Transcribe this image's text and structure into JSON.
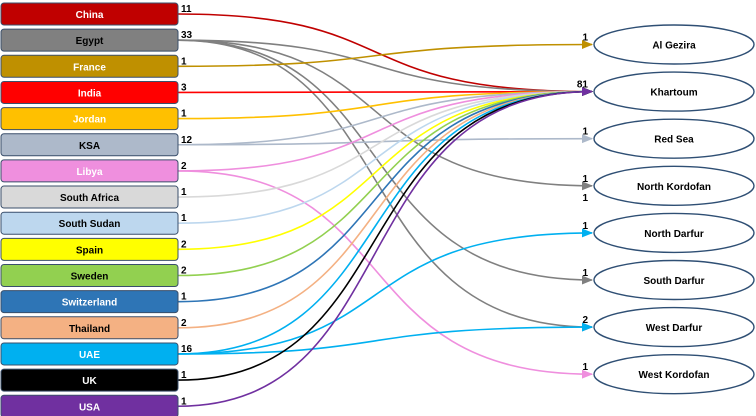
{
  "sources": [
    {
      "label": "China",
      "count": "11",
      "color": "#c00000",
      "text_color": "#ffffff"
    },
    {
      "label": "Egypt",
      "count": "33",
      "color": "#808080",
      "text_color": "#000000"
    },
    {
      "label": "France",
      "count": "1",
      "color": "#bf9000",
      "text_color": "#ffffff"
    },
    {
      "label": "India",
      "count": "3",
      "color": "#ff0000",
      "text_color": "#ffffff"
    },
    {
      "label": "Jordan",
      "count": "1",
      "color": "#ffc000",
      "text_color": "#ffffff"
    },
    {
      "label": "KSA",
      "count": "12",
      "color": "#adb9ca",
      "text_color": "#000000"
    },
    {
      "label": "Libya",
      "count": "2",
      "color": "#ef8fde",
      "text_color": "#ffffff"
    },
    {
      "label": "South Africa",
      "count": "1",
      "color": "#d9d9d9",
      "text_color": "#000000"
    },
    {
      "label": "South Sudan",
      "count": "1",
      "color": "#bdd7ee",
      "text_color": "#000000"
    },
    {
      "label": "Spain",
      "count": "2",
      "color": "#ffff00",
      "text_color": "#000000"
    },
    {
      "label": "Sweden",
      "count": "2",
      "color": "#92d050",
      "text_color": "#000000"
    },
    {
      "label": "Switzerland",
      "count": "1",
      "color": "#2e75b6",
      "text_color": "#ffffff"
    },
    {
      "label": "Thailand",
      "count": "2",
      "color": "#f4b183",
      "text_color": "#000000"
    },
    {
      "label": "UAE",
      "count": "16",
      "color": "#00b0f0",
      "text_color": "#ffffff"
    },
    {
      "label": "UK",
      "count": "1",
      "color": "#000000",
      "text_color": "#ffffff"
    },
    {
      "label": "USA",
      "count": "1",
      "color": "#7030a0",
      "text_color": "#ffffff"
    }
  ],
  "destinations": [
    {
      "label": "Al Gezira",
      "count": "1"
    },
    {
      "label": "Khartoum",
      "count": "81"
    },
    {
      "label": "Red Sea",
      "count": "1"
    },
    {
      "label": "North Kordofan",
      "count": "1",
      "count2": "1"
    },
    {
      "label": "North Darfur",
      "count": "1"
    },
    {
      "label": "South Darfur",
      "count": "1"
    },
    {
      "label": "West Darfur",
      "count": "2"
    },
    {
      "label": "West Kordofan",
      "count": "1"
    }
  ],
  "flows": [
    {
      "from": "China",
      "to": "Khartoum"
    },
    {
      "from": "Egypt",
      "to": "Khartoum"
    },
    {
      "from": "Egypt",
      "to": "North Kordofan"
    },
    {
      "from": "Egypt",
      "to": "South Darfur"
    },
    {
      "from": "Egypt",
      "to": "West Darfur"
    },
    {
      "from": "France",
      "to": "Al Gezira"
    },
    {
      "from": "India",
      "to": "Khartoum"
    },
    {
      "from": "Jordan",
      "to": "Khartoum"
    },
    {
      "from": "KSA",
      "to": "Khartoum"
    },
    {
      "from": "KSA",
      "to": "Red Sea"
    },
    {
      "from": "Libya",
      "to": "Khartoum"
    },
    {
      "from": "Libya",
      "to": "West Kordofan"
    },
    {
      "from": "South Africa",
      "to": "Khartoum"
    },
    {
      "from": "South Sudan",
      "to": "Khartoum"
    },
    {
      "from": "Spain",
      "to": "Khartoum"
    },
    {
      "from": "Sweden",
      "to": "Khartoum"
    },
    {
      "from": "Switzerland",
      "to": "Khartoum"
    },
    {
      "from": "Thailand",
      "to": "Khartoum"
    },
    {
      "from": "UAE",
      "to": "Khartoum"
    },
    {
      "from": "UAE",
      "to": "North Darfur"
    },
    {
      "from": "UAE",
      "to": "West Darfur"
    },
    {
      "from": "UK",
      "to": "Khartoum"
    },
    {
      "from": "USA",
      "to": "Khartoum"
    }
  ]
}
